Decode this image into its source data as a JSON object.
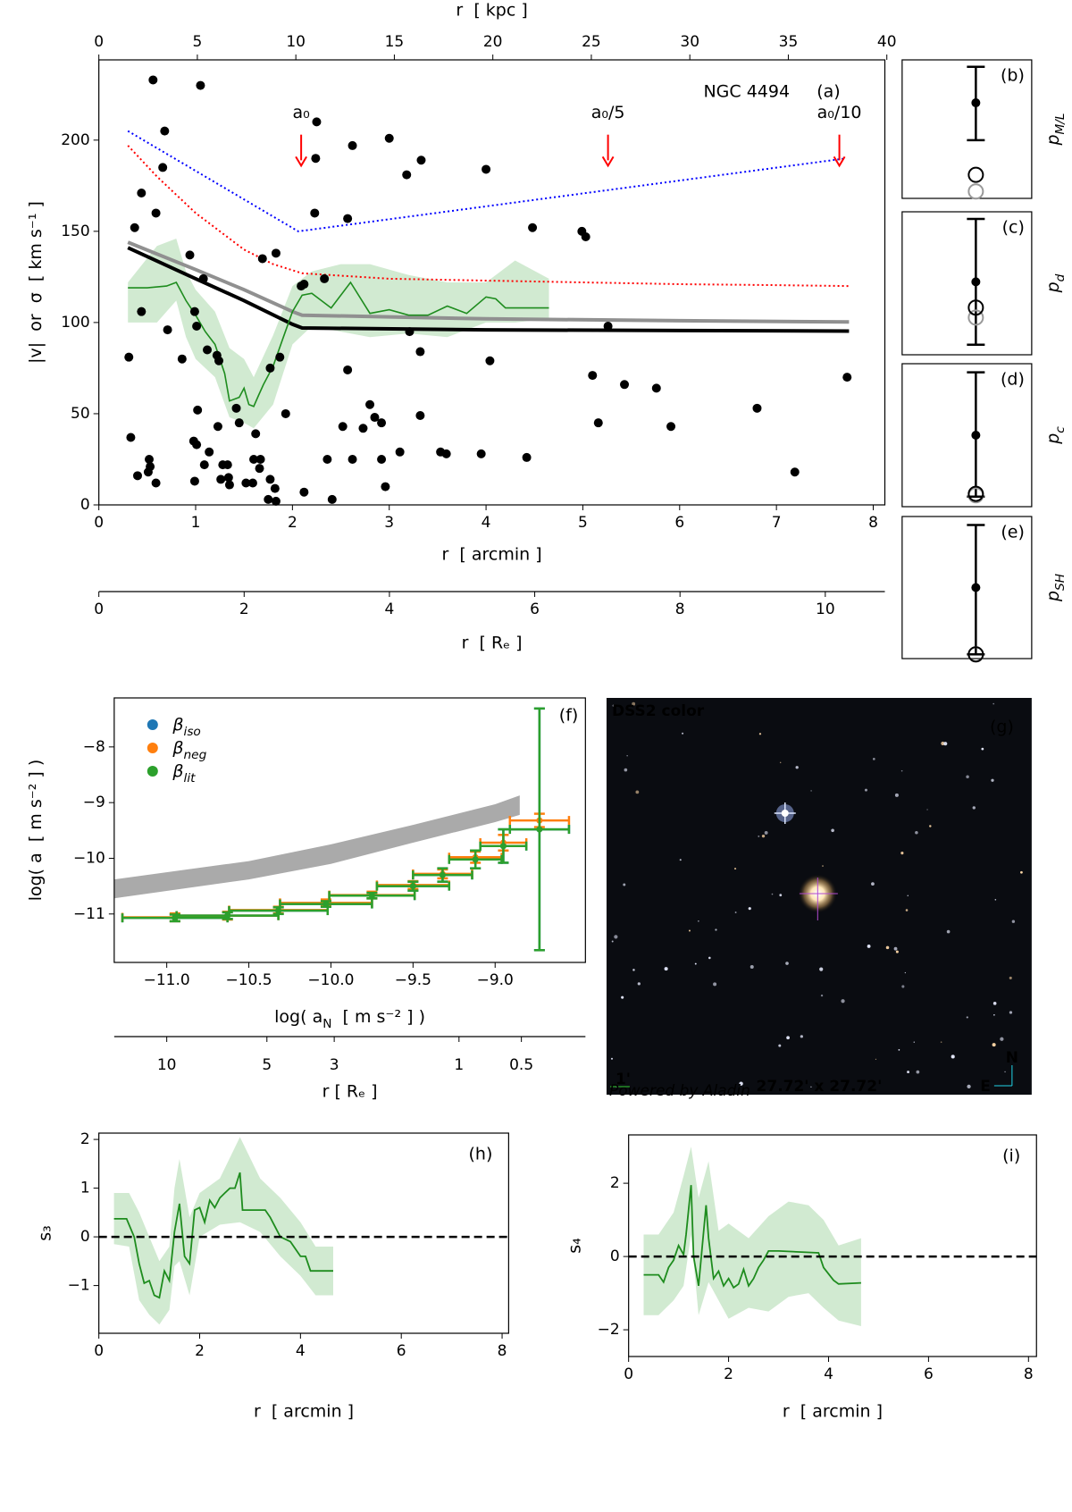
{
  "chart_data": [
    {
      "type": "scatter",
      "annotation": "NGC 4494",
      "panel_label": "(a)",
      "xlabel": "r  [ arcmin ]",
      "ylabel": "|v|  or  σ  [ km s⁻¹ ]",
      "xlim": [
        0,
        8.12
      ],
      "xticks": [
        0,
        1,
        2,
        3,
        4,
        5,
        6,
        7,
        8
      ],
      "ylim": [
        0,
        244
      ],
      "yticks": [
        0,
        50,
        100,
        150,
        200
      ],
      "top_axis": {
        "label": "r  [ kpc ]",
        "xlim": [
          0,
          39.9
        ],
        "xticks": [
          0,
          5,
          10,
          15,
          20,
          25,
          30,
          35,
          40
        ]
      },
      "bottom_axis2": {
        "label": "r  [ Rₑ ]",
        "xlim": [
          0,
          10.82
        ],
        "xticks": [
          0,
          2,
          4,
          6,
          8,
          10
        ]
      },
      "points": {
        "color": "#000000",
        "x": [
          0.56,
          1.05,
          0.68,
          0.66,
          0.44,
          0.59,
          0.37,
          0.44,
          0.94,
          1.08,
          0.71,
          0.86,
          0.99,
          1.01,
          1.12,
          1.22,
          1.24,
          0.31,
          0.33,
          0.52,
          0.53,
          0.51,
          0.4,
          0.59,
          0.99,
          0.98,
          1.01,
          1.02,
          1.14,
          1.09,
          1.23,
          1.26,
          1.28,
          1.33,
          1.34,
          1.35,
          1.42,
          1.45,
          1.52,
          1.59,
          1.62,
          1.6,
          1.67,
          1.75,
          1.82,
          1.77,
          1.83,
          1.66,
          2.12,
          1.87,
          1.69,
          1.83,
          1.77,
          1.93,
          2.09,
          2.12,
          2.25,
          2.24,
          2.23,
          2.62,
          2.57,
          2.33,
          2.41,
          2.36,
          2.62,
          2.57,
          2.8,
          2.85,
          2.52,
          2.73,
          2.92,
          2.96,
          2.92,
          3.0,
          3.18,
          3.33,
          3.21,
          3.32,
          3.32,
          3.11,
          3.53,
          3.59,
          3.95,
          4.0,
          4.04,
          4.42,
          4.48,
          4.99,
          5.03,
          5.1,
          5.26,
          5.16,
          5.43,
          5.76,
          5.91,
          6.8,
          7.19,
          7.73
        ],
        "values": [
          233,
          230,
          205,
          185,
          171,
          160,
          152,
          106,
          137,
          124,
          96,
          80,
          106,
          98,
          85,
          82,
          79,
          81,
          37,
          25,
          21,
          18,
          16,
          12,
          13,
          35,
          33,
          52,
          29,
          22,
          43,
          14,
          22,
          22,
          15,
          11,
          53,
          45,
          12,
          12,
          39,
          25,
          25,
          3,
          9,
          14,
          2,
          20,
          7,
          81,
          135,
          138,
          75,
          50,
          120,
          121,
          210,
          190,
          160,
          197,
          157,
          124,
          3,
          25,
          25,
          74,
          55,
          48,
          43,
          42,
          45,
          10,
          25,
          201,
          181,
          189,
          95,
          84,
          49,
          29,
          29,
          28,
          28,
          184,
          79,
          26,
          152,
          150,
          147,
          71,
          98,
          45,
          66,
          64,
          43,
          53,
          18,
          70
        ]
      },
      "band": {
        "color": "#2ca02c",
        "x": [
          0.3,
          0.6,
          0.8,
          0.9,
          1.0,
          1.2,
          1.35,
          1.5,
          1.6,
          1.8,
          2.0,
          2.2,
          2.5,
          2.8,
          3.2,
          3.6,
          4.0,
          4.3,
          4.65
        ],
        "lower": [
          100,
          100,
          112,
          92,
          80,
          70,
          48,
          45,
          42,
          55,
          88,
          98,
          95,
          92,
          94,
          92,
          100,
          100,
          102
        ],
        "upper": [
          122,
          142,
          146,
          128,
          118,
          106,
          86,
          80,
          70,
          93,
          120,
          128,
          132,
          132,
          126,
          122,
          122,
          134,
          124
        ]
      },
      "lines": [
        {
          "color": "#0000ff",
          "style": "dotted",
          "x": [
            0.3,
            2.06,
            7.72
          ],
          "values": [
            205,
            150,
            190
          ]
        },
        {
          "color": "#ff0000",
          "style": "dotted",
          "x": [
            0.3,
            0.6,
            1.0,
            1.5,
            1.8,
            2.1,
            3,
            4,
            5,
            6,
            7,
            7.75
          ],
          "values": [
            197,
            180,
            160,
            140,
            132,
            127,
            124,
            123,
            122,
            121,
            120.5,
            120
          ]
        },
        {
          "color": "#909090",
          "style": "thick",
          "x": [
            0.3,
            1,
            1.5,
            2,
            2.1,
            4,
            6,
            7.75
          ],
          "values": [
            144,
            129,
            118,
            106,
            104,
            102,
            101,
            100.3
          ]
        },
        {
          "color": "#000000",
          "style": "thick",
          "x": [
            0.3,
            1,
            1.5,
            2,
            2.1,
            4,
            6,
            7.75
          ],
          "values": [
            141,
            124,
            112,
            99,
            97,
            96,
            95.6,
            95.3
          ]
        },
        {
          "color": "#1e8c1e",
          "style": "thin",
          "x": [
            0.3,
            0.5,
            0.7,
            0.8,
            0.9,
            1.0,
            1.1,
            1.2,
            1.25,
            1.3,
            1.35,
            1.45,
            1.5,
            1.55,
            1.6,
            1.65,
            1.7,
            1.8,
            1.9,
            2.0,
            2.1,
            2.2,
            2.4,
            2.6,
            2.8,
            3.0,
            3.2,
            3.4,
            3.6,
            3.8,
            4.0,
            4.1,
            4.2,
            4.4,
            4.65
          ],
          "values": [
            119,
            119,
            120,
            122,
            112,
            104,
            95,
            88,
            80,
            72,
            57,
            59,
            64,
            55,
            54,
            60,
            66,
            76,
            91,
            106,
            115,
            116,
            108,
            122,
            105,
            107,
            104,
            104,
            109,
            105,
            114,
            113,
            108,
            108,
            108
          ]
        }
      ],
      "arrows": [
        {
          "label": "a₀",
          "color": "#ff0000",
          "x": 2.09,
          "tail": 203,
          "tip": 186
        },
        {
          "label": "a₀/5",
          "color": "#ff0000",
          "x": 5.26,
          "tail": 203,
          "tip": 186
        },
        {
          "label": "a₀/10",
          "color": "#ff0000",
          "x": 7.65,
          "tail": 203,
          "tip": 186
        }
      ]
    },
    {
      "type": "point_range",
      "panel_label": "(b)",
      "ylabel": "p",
      "ylabel_sub": "M/L",
      "value": 0.69,
      "range": [
        0.42,
        0.95
      ],
      "circles": [
        {
          "color": "#000000",
          "value": 0.17
        },
        {
          "color": "#999999",
          "value": 0.05
        }
      ]
    },
    {
      "type": "point_range",
      "panel_label": "(c)",
      "ylabel": "p",
      "ylabel_sub": "d",
      "value": 0.51,
      "range": [
        0.07,
        0.95
      ],
      "circles": [
        {
          "color": "#999999",
          "value": 0.26
        },
        {
          "color": "#000000",
          "value": 0.33
        }
      ]
    },
    {
      "type": "point_range",
      "panel_label": "(d)",
      "ylabel": "p",
      "ylabel_sub": "c",
      "value": 0.5,
      "range": [
        0.07,
        0.94
      ],
      "circles": [
        {
          "color": "#999999",
          "value": 0.08
        },
        {
          "color": "#000000",
          "value": 0.09
        }
      ]
    },
    {
      "type": "point_range",
      "panel_label": "(e)",
      "ylabel": "p",
      "ylabel_sub": "SH",
      "value": 0.5,
      "range": [
        0.03,
        0.94
      ],
      "circles": [
        {
          "color": "#999999",
          "value": 0.03
        },
        {
          "color": "#000000",
          "value": 0.03
        }
      ]
    },
    {
      "type": "errorbar",
      "panel_label": "(f)",
      "xlabel": "log( a",
      "xlabel_sub": "N",
      "xlabel_tail": "  [ m s⁻² ] )",
      "ylabel": "log( a  [ m s⁻² ] )",
      "xlim": [
        -11.32,
        -8.45
      ],
      "xticks": [
        {
          "value": -11,
          "label": "−11.0"
        },
        {
          "value": -10.5,
          "label": "−10.5"
        },
        {
          "value": -10,
          "label": "−10.0"
        },
        {
          "value": -9.5,
          "label": "−9.5"
        },
        {
          "value": -9,
          "label": "−9.0"
        }
      ],
      "ylim": [
        -11.87,
        -7.12
      ],
      "yticks": [
        {
          "value": -8,
          "label": "−8"
        },
        {
          "value": -9,
          "label": "−9"
        },
        {
          "value": -10,
          "label": "−10"
        },
        {
          "value": -11,
          "label": "−11"
        }
      ],
      "band": {
        "color": "#aaaaaa",
        "x": [
          -11.32,
          -10.5,
          -10,
          -9.5,
          -9,
          -8.85
        ],
        "lower": [
          -10.72,
          -10.38,
          -10.1,
          -9.72,
          -9.35,
          -9.22
        ],
        "upper": [
          -10.38,
          -10.05,
          -9.75,
          -9.4,
          -9.03,
          -8.87
        ]
      },
      "series": [
        {
          "name": "β",
          "name_sub": "iso",
          "color": "#1f77b4",
          "x": [
            -10.95,
            -10.63,
            -10.32,
            -10.03,
            -9.75,
            -9.5,
            -9.32,
            -9.12,
            -8.95,
            -8.73
          ],
          "xerr": [
            0.32,
            0.31,
            0.3,
            0.28,
            0.26,
            0.22,
            0.18,
            0.16,
            0.14,
            0.18
          ],
          "values": [
            -11.07,
            -11.03,
            -10.94,
            -10.82,
            -10.67,
            -10.5,
            -10.3,
            -10.02,
            -9.78,
            -9.48
          ],
          "yerr": [
            0.06,
            0.06,
            0.06,
            0.05,
            0.05,
            0.08,
            0.12,
            0.16,
            0.3,
            2.17
          ]
        },
        {
          "name": "β",
          "name_sub": "neg",
          "color": "#ff7f0e",
          "x": [
            -10.95,
            -10.63,
            -10.32,
            -10.03,
            -9.75,
            -9.5,
            -9.32,
            -9.12,
            -8.95,
            -8.73
          ],
          "xerr": [
            0.32,
            0.31,
            0.3,
            0.28,
            0.26,
            0.22,
            0.18,
            0.16,
            0.14,
            0.18
          ],
          "values": [
            -11.06,
            -11.03,
            -10.93,
            -10.8,
            -10.66,
            -10.48,
            -10.28,
            -9.98,
            -9.72,
            -9.32
          ],
          "yerr": [
            0.07,
            0.07,
            0.06,
            0.06,
            0.06,
            0.07,
            0.08,
            0.1,
            0.14,
            0.12
          ]
        },
        {
          "name": "β",
          "name_sub": "lit",
          "color": "#2ca02c",
          "x": [
            -10.95,
            -10.63,
            -10.32,
            -10.03,
            -9.75,
            -9.5,
            -9.32,
            -9.12,
            -8.95,
            -8.73
          ],
          "xerr": [
            0.32,
            0.31,
            0.3,
            0.28,
            0.26,
            0.22,
            0.18,
            0.16,
            0.14,
            0.18
          ],
          "values": [
            -11.07,
            -11.03,
            -10.94,
            -10.82,
            -10.67,
            -10.5,
            -10.3,
            -10.02,
            -9.78,
            -9.48
          ],
          "yerr": [
            0.06,
            0.06,
            0.06,
            0.05,
            0.05,
            0.08,
            0.12,
            0.16,
            0.3,
            2.17
          ]
        }
      ],
      "r_axis": {
        "label": "r [ Rₑ ]",
        "ticks": [
          10,
          5,
          3,
          1,
          0.5
        ],
        "tick_positions": [
          -11.0,
          -10.39,
          -9.98,
          -9.22,
          -8.84
        ]
      }
    },
    {
      "type": "line",
      "panel_label": "(h)",
      "xlabel": "r  [ arcmin ]",
      "ylabel": "s₃",
      "xlim": [
        0,
        8.13
      ],
      "xticks": [
        0,
        2,
        4,
        6,
        8
      ],
      "ylim": [
        -1.98,
        2.13
      ],
      "yticks": [
        {
          "value": -1,
          "label": "−1"
        },
        0,
        1,
        2
      ],
      "hline": 0,
      "band": {
        "color": "#2ca02c",
        "x": [
          0.3,
          0.6,
          0.8,
          1.0,
          1.2,
          1.4,
          1.5,
          1.6,
          1.8,
          2.0,
          2.4,
          2.8,
          3.2,
          3.6,
          4.0,
          4.3,
          4.65
        ],
        "lower": [
          -0.15,
          -0.2,
          -1.3,
          -1.6,
          -1.8,
          -1.5,
          -0.6,
          -0.5,
          -1.2,
          0.0,
          0.25,
          0.3,
          0.1,
          -0.4,
          -0.8,
          -1.2,
          -1.2
        ],
        "upper": [
          0.9,
          0.9,
          0.5,
          0.0,
          -0.5,
          -0.2,
          1.0,
          1.6,
          0.4,
          0.9,
          1.2,
          2.05,
          1.2,
          0.8,
          0.3,
          -0.2,
          -0.2
        ]
      },
      "line": {
        "color": "#1e8c1e",
        "x": [
          0.3,
          0.55,
          0.7,
          0.8,
          0.9,
          1.0,
          1.1,
          1.2,
          1.3,
          1.4,
          1.5,
          1.6,
          1.7,
          1.8,
          1.9,
          2.0,
          2.1,
          2.2,
          2.3,
          2.4,
          2.5,
          2.6,
          2.7,
          2.8,
          2.85,
          3.3,
          3.4,
          3.6,
          3.8,
          4.0,
          4.1,
          4.2,
          4.65
        ],
        "values": [
          0.37,
          0.37,
          0.0,
          -0.55,
          -0.95,
          -0.9,
          -1.2,
          -1.25,
          -0.7,
          -0.9,
          0.1,
          0.68,
          -0.4,
          -0.55,
          0.55,
          0.6,
          0.3,
          0.75,
          0.6,
          0.8,
          0.9,
          1.0,
          1.0,
          1.32,
          0.55,
          0.55,
          0.4,
          0.0,
          -0.1,
          -0.4,
          -0.4,
          -0.7,
          -0.7
        ]
      }
    },
    {
      "type": "line",
      "panel_label": "(i)",
      "xlabel": "r  [ arcmin ]",
      "ylabel": "s₄",
      "xlim": [
        0,
        8.16
      ],
      "xticks": [
        0,
        2,
        4,
        6,
        8
      ],
      "ylim": [
        -2.73,
        3.32
      ],
      "yticks": [
        {
          "value": -2,
          "label": "−2"
        },
        0,
        2
      ],
      "hline": 0,
      "band": {
        "color": "#2ca02c",
        "x": [
          0.3,
          0.6,
          0.9,
          1.1,
          1.25,
          1.4,
          1.6,
          1.8,
          2.0,
          2.4,
          2.8,
          3.2,
          3.6,
          3.9,
          4.2,
          4.65
        ],
        "lower": [
          -1.6,
          -1.6,
          -1.2,
          -0.8,
          0.6,
          -1.6,
          -0.7,
          -1.2,
          -1.7,
          -1.4,
          -1.5,
          -1.1,
          -1.0,
          -1.4,
          -1.75,
          -1.9
        ],
        "upper": [
          0.6,
          0.6,
          1.2,
          2.2,
          3.0,
          1.6,
          2.6,
          0.7,
          0.9,
          0.5,
          1.1,
          1.5,
          1.4,
          1.0,
          0.3,
          0.5
        ]
      },
      "line": {
        "color": "#1e8c1e",
        "x": [
          0.3,
          0.6,
          0.7,
          0.8,
          0.9,
          1.0,
          1.1,
          1.15,
          1.25,
          1.3,
          1.4,
          1.55,
          1.6,
          1.7,
          1.8,
          1.9,
          2.0,
          2.1,
          2.2,
          2.3,
          2.4,
          2.5,
          2.6,
          2.7,
          2.8,
          3.0,
          3.8,
          3.9,
          4.1,
          4.2,
          4.65
        ],
        "values": [
          -0.5,
          -0.5,
          -0.7,
          -0.3,
          -0.1,
          0.3,
          0.05,
          0.6,
          1.95,
          0.0,
          -0.8,
          1.4,
          0.5,
          -0.6,
          -0.4,
          -0.8,
          -0.6,
          -0.85,
          -0.75,
          -0.35,
          -0.8,
          -0.6,
          -0.3,
          -0.1,
          0.15,
          0.15,
          0.1,
          -0.3,
          -0.65,
          -0.75,
          -0.72
        ]
      }
    }
  ],
  "image_panel": {
    "source": "DSS2 color",
    "panel_label": "(g)",
    "field": "27.72' x 27.72'",
    "scale": "1'",
    "credit": "Powered by Aladin",
    "north": "N",
    "east": "E"
  }
}
